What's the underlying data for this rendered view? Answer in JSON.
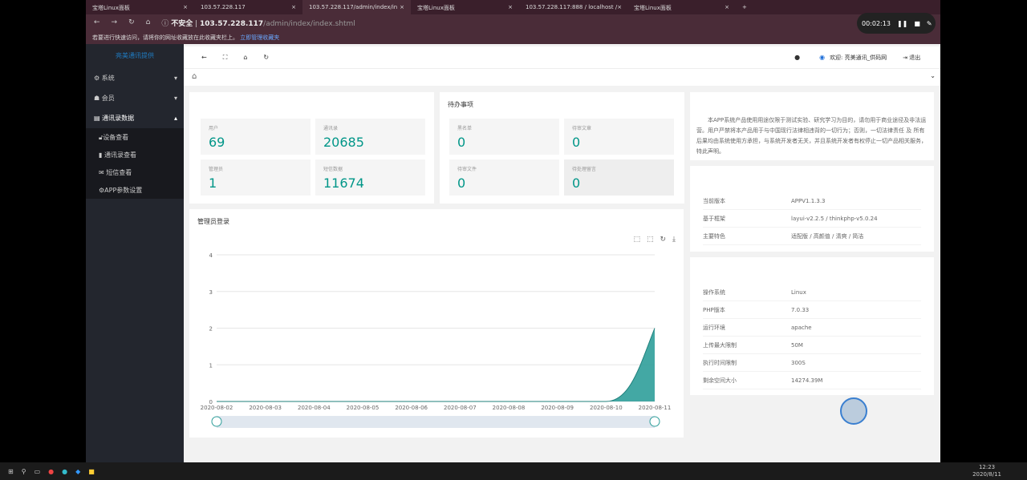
{
  "browser": {
    "tabs": [
      {
        "label": "宝塔Linux面板"
      },
      {
        "label": "103.57.228.117"
      },
      {
        "label": "103.57.228.117/admin/index/in"
      },
      {
        "label": "宝塔Linux面板"
      },
      {
        "label": "103.57.228.117:888 / localhost /"
      },
      {
        "label": "宝塔Linux面板"
      }
    ],
    "insecure": "不安全",
    "url_host": "103.57.228.117",
    "url_path": "/admin/index/index.shtml",
    "bookmark_hint": "若要进行快速访问，请将你的网址收藏放在此收藏夹栏上。",
    "bookmark_link": "立即管理收藏夹",
    "recording_time": "00:02:13"
  },
  "sidebar": {
    "logo": "亮美通讯提供",
    "items": [
      {
        "label": "系统",
        "icon": "gear"
      },
      {
        "label": "会员",
        "icon": "users"
      },
      {
        "label": "通讯录数据",
        "icon": "card"
      }
    ],
    "subitems": [
      {
        "label": "设备查看",
        "icon": "lock"
      },
      {
        "label": "通讯录查看",
        "icon": "book"
      },
      {
        "label": "短信查看",
        "icon": "mail"
      },
      {
        "label": "APP参数设置",
        "icon": "gear"
      }
    ]
  },
  "header": {
    "welcome": "欢迎: 亮美通讯_供码网",
    "logout": "退出"
  },
  "stats": [
    {
      "label": "用户",
      "value": "69"
    },
    {
      "label": "通讯录",
      "value": "20685"
    },
    {
      "label": "管理员",
      "value": "1"
    },
    {
      "label": "短信数据",
      "value": "11674"
    }
  ],
  "todo": {
    "title": "待办事项",
    "items": [
      {
        "label": "黑名单",
        "value": "0"
      },
      {
        "label": "待审文章",
        "value": "0"
      },
      {
        "label": "待审文件",
        "value": "0"
      },
      {
        "label": "待处理留言",
        "value": "0"
      }
    ]
  },
  "notice": "本APP系统产品使用用途仅限于测试实验、研究学习为目的，请勿用于商业途径及非法运营。用户严禁将本产品用于与中国现行法律相违背的一切行为；否则，一切法律责任 及 所有后果均由系统使用方承担，与系统开发者无关，并且系统开发者有权停止一切产品相关服务，特此声明。",
  "version": [
    {
      "k": "当前版本",
      "v": "APPV1.1.3.3"
    },
    {
      "k": "基于框架",
      "v": "layui-v2.2.5 / thinkphp-v5.0.24"
    },
    {
      "k": "主要特色",
      "v": "适配版 / 高颜值 / 清爽 / 简洁"
    }
  ],
  "system": [
    {
      "k": "操作系统",
      "v": "Linux"
    },
    {
      "k": "PHP版本",
      "v": "7.0.33"
    },
    {
      "k": "运行环境",
      "v": "apache"
    },
    {
      "k": "上传最大限制",
      "v": "50M"
    },
    {
      "k": "执行时间限制",
      "v": "300S"
    },
    {
      "k": "剩余空间大小",
      "v": "14274.39M"
    }
  ],
  "chart_title": "管理员登录",
  "chart_data": {
    "type": "area",
    "categories": [
      "2020-08-02",
      "2020-08-03",
      "2020-08-04",
      "2020-08-05",
      "2020-08-06",
      "2020-08-07",
      "2020-08-08",
      "2020-08-09",
      "2020-08-10",
      "2020-08-11"
    ],
    "values": [
      0,
      0,
      0,
      0,
      0,
      0,
      0,
      0,
      0,
      2
    ],
    "ylim": [
      0,
      4
    ],
    "yticks": [
      "0",
      "1",
      "2",
      "3",
      "4"
    ],
    "color": "#2f9e9a",
    "grid": true
  },
  "taskbar": {
    "time": "12:23",
    "date": "2020/8/11"
  }
}
